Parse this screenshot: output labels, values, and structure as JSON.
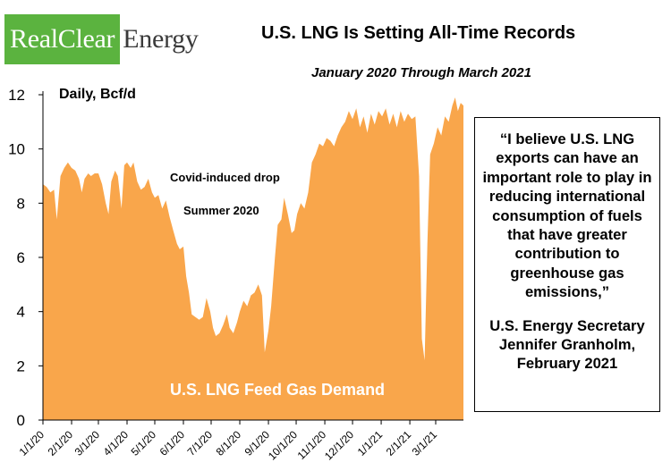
{
  "logo": {
    "part1": "RealClear",
    "part2": "Energy"
  },
  "header": {
    "title": "U.S. LNG Is Setting All-Time Records",
    "subtitle": "January 2020 Through March 2021"
  },
  "quote": {
    "text": "“I believe U.S. LNG exports can have an important role to play in reducing international consumption of fuels that have greater contribution to greenhouse gas emissions,”",
    "attribution": "U.S. Energy Secretary Jennifer Granholm, February 2021"
  },
  "colors": {
    "fill": "#f9a64b",
    "logo_green": "#5bb33f"
  },
  "chart_data": {
    "type": "area",
    "ylabel": "Daily, Bcf/d",
    "ylim": [
      0,
      12
    ],
    "yticks": [
      0,
      2,
      4,
      6,
      8,
      10,
      12
    ],
    "xticks": [
      "1/1/20",
      "2/1/20",
      "3/1/20",
      "4/1/20",
      "5/1/20",
      "6/1/20",
      "7/1/20",
      "8/1/20",
      "9/1/20",
      "10/1/20",
      "11/1/20",
      "12/1/20",
      "1/1/21",
      "2/1/21",
      "3/1/21"
    ],
    "xlim": [
      "2020-01-01",
      "2021-03-31"
    ],
    "grid": false,
    "series": [
      {
        "name": "U.S. LNG Feed Gas Demand",
        "points": [
          [
            "2020-01-01",
            8.7
          ],
          [
            "2020-01-05",
            8.6
          ],
          [
            "2020-01-09",
            8.4
          ],
          [
            "2020-01-13",
            8.5
          ],
          [
            "2020-01-16",
            7.4
          ],
          [
            "2020-01-20",
            9.0
          ],
          [
            "2020-01-24",
            9.3
          ],
          [
            "2020-01-28",
            9.5
          ],
          [
            "2020-02-01",
            9.3
          ],
          [
            "2020-02-05",
            9.2
          ],
          [
            "2020-02-09",
            8.9
          ],
          [
            "2020-02-12",
            8.4
          ],
          [
            "2020-02-15",
            8.9
          ],
          [
            "2020-02-19",
            9.1
          ],
          [
            "2020-02-22",
            9.0
          ],
          [
            "2020-02-26",
            9.1
          ],
          [
            "2020-03-01",
            9.1
          ],
          [
            "2020-03-05",
            8.7
          ],
          [
            "2020-03-09",
            8.0
          ],
          [
            "2020-03-12",
            7.6
          ],
          [
            "2020-03-15",
            8.8
          ],
          [
            "2020-03-19",
            9.2
          ],
          [
            "2020-03-22",
            9.0
          ],
          [
            "2020-03-26",
            7.8
          ],
          [
            "2020-03-29",
            9.4
          ],
          [
            "2020-04-01",
            9.5
          ],
          [
            "2020-04-05",
            9.3
          ],
          [
            "2020-04-08",
            9.5
          ],
          [
            "2020-04-12",
            8.8
          ],
          [
            "2020-04-16",
            8.5
          ],
          [
            "2020-04-20",
            8.6
          ],
          [
            "2020-04-24",
            8.9
          ],
          [
            "2020-04-28",
            8.4
          ],
          [
            "2020-05-01",
            8.2
          ],
          [
            "2020-05-05",
            8.3
          ],
          [
            "2020-05-09",
            7.8
          ],
          [
            "2020-05-13",
            8.1
          ],
          [
            "2020-05-17",
            7.5
          ],
          [
            "2020-05-21",
            7.0
          ],
          [
            "2020-05-25",
            6.5
          ],
          [
            "2020-05-28",
            6.3
          ],
          [
            "2020-06-01",
            6.4
          ],
          [
            "2020-06-04",
            5.3
          ],
          [
            "2020-06-07",
            4.7
          ],
          [
            "2020-06-10",
            3.9
          ],
          [
            "2020-06-14",
            3.8
          ],
          [
            "2020-06-18",
            3.7
          ],
          [
            "2020-06-22",
            3.8
          ],
          [
            "2020-06-26",
            4.5
          ],
          [
            "2020-06-30",
            4.0
          ],
          [
            "2020-07-03",
            3.4
          ],
          [
            "2020-07-06",
            3.1
          ],
          [
            "2020-07-10",
            3.2
          ],
          [
            "2020-07-14",
            3.5
          ],
          [
            "2020-07-18",
            3.9
          ],
          [
            "2020-07-21",
            3.4
          ],
          [
            "2020-07-25",
            3.2
          ],
          [
            "2020-07-29",
            3.6
          ],
          [
            "2020-08-01",
            4.0
          ],
          [
            "2020-08-05",
            4.4
          ],
          [
            "2020-08-09",
            4.2
          ],
          [
            "2020-08-13",
            4.6
          ],
          [
            "2020-08-17",
            4.7
          ],
          [
            "2020-08-21",
            5.0
          ],
          [
            "2020-08-25",
            4.6
          ],
          [
            "2020-08-28",
            2.5
          ],
          [
            "2020-09-01",
            3.3
          ],
          [
            "2020-09-04",
            4.2
          ],
          [
            "2020-09-08",
            6.0
          ],
          [
            "2020-09-11",
            7.2
          ],
          [
            "2020-09-15",
            7.4
          ],
          [
            "2020-09-18",
            8.2
          ],
          [
            "2020-09-22",
            7.6
          ],
          [
            "2020-09-26",
            6.9
          ],
          [
            "2020-09-29",
            7.0
          ],
          [
            "2020-10-02",
            7.6
          ],
          [
            "2020-10-06",
            8.0
          ],
          [
            "2020-10-10",
            7.8
          ],
          [
            "2020-10-14",
            8.4
          ],
          [
            "2020-10-18",
            9.5
          ],
          [
            "2020-10-22",
            9.8
          ],
          [
            "2020-10-26",
            10.2
          ],
          [
            "2020-10-30",
            10.1
          ],
          [
            "2020-11-03",
            10.4
          ],
          [
            "2020-11-07",
            10.3
          ],
          [
            "2020-11-11",
            10.1
          ],
          [
            "2020-11-15",
            10.5
          ],
          [
            "2020-11-19",
            10.8
          ],
          [
            "2020-11-23",
            11.0
          ],
          [
            "2020-11-27",
            11.4
          ],
          [
            "2020-12-01",
            11.1
          ],
          [
            "2020-12-05",
            11.5
          ],
          [
            "2020-12-09",
            10.8
          ],
          [
            "2020-12-13",
            11.2
          ],
          [
            "2020-12-17",
            10.6
          ],
          [
            "2020-12-21",
            11.3
          ],
          [
            "2020-12-25",
            10.9
          ],
          [
            "2020-12-29",
            11.4
          ],
          [
            "2021-01-02",
            11.2
          ],
          [
            "2021-01-06",
            11.5
          ],
          [
            "2021-01-10",
            10.9
          ],
          [
            "2021-01-14",
            11.3
          ],
          [
            "2021-01-18",
            10.8
          ],
          [
            "2021-01-22",
            11.4
          ],
          [
            "2021-01-26",
            11.0
          ],
          [
            "2021-01-30",
            11.3
          ],
          [
            "2021-02-03",
            11.1
          ],
          [
            "2021-02-07",
            11.2
          ],
          [
            "2021-02-11",
            9.0
          ],
          [
            "2021-02-14",
            3.0
          ],
          [
            "2021-02-17",
            2.2
          ],
          [
            "2021-02-20",
            6.5
          ],
          [
            "2021-02-23",
            9.8
          ],
          [
            "2021-02-27",
            10.2
          ],
          [
            "2021-03-03",
            10.8
          ],
          [
            "2021-03-07",
            10.5
          ],
          [
            "2021-03-11",
            11.2
          ],
          [
            "2021-03-15",
            11.0
          ],
          [
            "2021-03-19",
            11.6
          ],
          [
            "2021-03-22",
            11.9
          ],
          [
            "2021-03-25",
            11.4
          ],
          [
            "2021-03-28",
            11.7
          ],
          [
            "2021-03-31",
            11.6
          ]
        ]
      }
    ],
    "annotations": [
      "Covid-induced drop",
      "Summer 2020",
      "U.S. LNG Feed Gas Demand"
    ]
  }
}
